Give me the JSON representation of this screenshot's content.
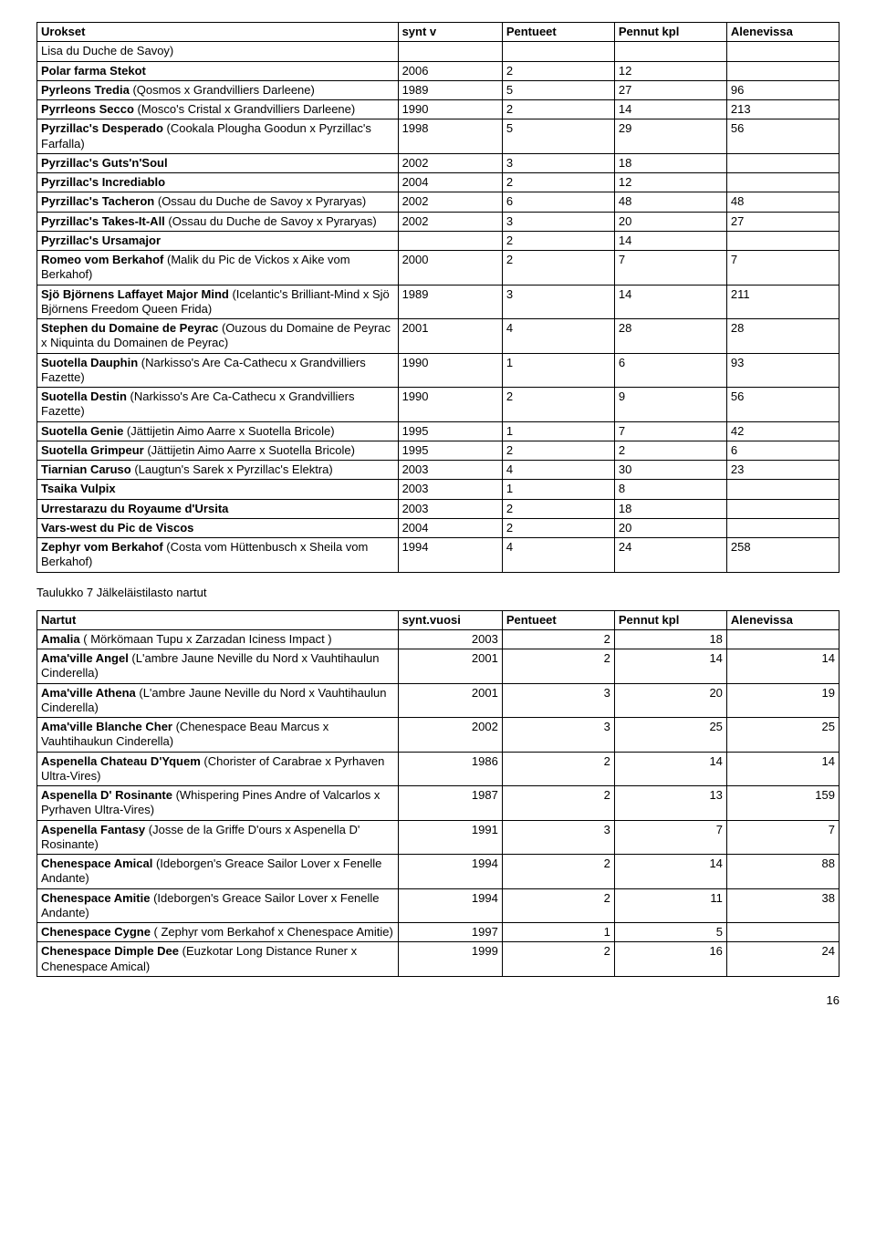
{
  "table1": {
    "headers": [
      "Urokset",
      "synt v",
      "Pentueet",
      "Pennut kpl",
      "Alenevissa"
    ],
    "rows": [
      {
        "name": "Lisa du Duche de Savoy)",
        "bold_prefix": "",
        "c2": "",
        "c3": "",
        "c4": "",
        "c5": ""
      },
      {
        "name": "Polar farma Stekot",
        "bold_full": true,
        "c2": "2006",
        "c3": "2",
        "c4": "12",
        "c5": ""
      },
      {
        "name_bold": "Pyrleons Tredia",
        "name_rest": " (Qosmos x Grandvilliers Darleene)",
        "c2": "1989",
        "c3": "5",
        "c4": "27",
        "c5": "96"
      },
      {
        "name_bold": "Pyrrleons Secco",
        "name_rest": " (Mosco's Cristal x Grandvilliers Darleene)",
        "c2": "1990",
        "c3": "2",
        "c4": "14",
        "c5": "213"
      },
      {
        "name_bold": "Pyrzillac's Desperado",
        "name_rest": " (Cookala Plougha Goodun x Pyrzillac's Farfalla)",
        "c2": "1998",
        "c3": "5",
        "c4": "29",
        "c5": "56"
      },
      {
        "name": "Pyrzillac's Guts'n'Soul",
        "bold_full": true,
        "c2": "2002",
        "c3": "3",
        "c4": "18",
        "c5": ""
      },
      {
        "name": "Pyrzillac's Incrediablo",
        "bold_full": true,
        "c2": "2004",
        "c3": "2",
        "c4": "12",
        "c5": ""
      },
      {
        "name_bold": "Pyrzillac's Tacheron",
        "name_rest": " (Ossau du Duche de Savoy x Pyraryas)",
        "c2": "2002",
        "c3": "6",
        "c4": "48",
        "c5": "48"
      },
      {
        "name_bold": "Pyrzillac's Takes-It-All",
        "name_rest": " (Ossau du Duche de Savoy x Pyraryas)",
        "c2": "2002",
        "c3": "3",
        "c4": "20",
        "c5": "27"
      },
      {
        "name": "Pyrzillac's Ursamajor",
        "bold_full": true,
        "c2": "",
        "c3": "2",
        "c4": "14",
        "c5": ""
      },
      {
        "name_bold": "Romeo vom Berkahof",
        "name_rest": " (Malik du Pic de Vickos x Aike vom Berkahof)",
        "c2": "2000",
        "c3": "2",
        "c4": "7",
        "c5": "7"
      },
      {
        "name_bold": "Sjö Björnens Laffayet Major Mind",
        "name_rest": " (Icelantic's Brilliant-Mind x Sjö Björnens Freedom Queen Frida)",
        "c2": "1989",
        "c3": "3",
        "c4": "14",
        "c5": "211"
      },
      {
        "name_bold": "Stephen du Domaine de Peyrac",
        "name_rest": " (Ouzous du Domaine de Peyrac x Niquinta du Domainen de Peyrac)",
        "c2": "2001",
        "c3": "4",
        "c4": "28",
        "c5": "28"
      },
      {
        "name_bold": "Suotella Dauphin",
        "name_rest": " (Narkisso's Are Ca-Cathecu x Grandvilliers Fazette)",
        "c2": "1990",
        "c3": "1",
        "c4": "6",
        "c5": "93"
      },
      {
        "name_bold": "Suotella Destin",
        "name_rest": " (Narkisso's Are Ca-Cathecu x Grandvilliers Fazette)",
        "c2": "1990",
        "c3": "2",
        "c4": "9",
        "c5": "56"
      },
      {
        "name_bold": "Suotella Genie",
        "name_rest": " (Jättijetin Aimo Aarre x Suotella Bricole)",
        "c2": "1995",
        "c3": "1",
        "c4": "7",
        "c5": "42"
      },
      {
        "name_bold": "Suotella Grimpeur",
        "name_rest": " (Jättijetin Aimo Aarre x Suotella Bricole)",
        "c2": "1995",
        "c3": "2",
        "c4": "2",
        "c5": "6"
      },
      {
        "name_bold": "Tiarnian Caruso",
        "name_rest": " (Laugtun's Sarek x Pyrzillac's Elektra)",
        "c2": "2003",
        "c3": "4",
        "c4": "30",
        "c5": "23"
      },
      {
        "name": "Tsaika Vulpix",
        "bold_full": true,
        "c2": "2003",
        "c3": "1",
        "c4": "8",
        "c5": ""
      },
      {
        "name": "Urrestarazu du Royaume d'Ursita",
        "bold_full": true,
        "c2": "2003",
        "c3": "2",
        "c4": "18",
        "c5": ""
      },
      {
        "name": "Vars-west du Pic de Viscos",
        "bold_full": true,
        "c2": "2004",
        "c3": "2",
        "c4": "20",
        "c5": ""
      },
      {
        "name_bold": "Zephyr vom Berkahof",
        "name_rest": " (Costa vom Hüttenbusch x Sheila vom Berkahof)",
        "c2": "1994",
        "c3": "4",
        "c4": "24",
        "c5": "258"
      }
    ]
  },
  "caption": "Taulukko 7 Jälkeläistilasto nartut",
  "table2": {
    "headers": [
      "Nartut",
      "synt.vuosi",
      "Pentueet",
      "Pennut kpl",
      "Alenevissa"
    ],
    "rows": [
      {
        "name_bold": "Amalia ",
        "name_rest": "( Mörkömaan Tupu x Zarzadan Iciness Impact )",
        "c2": "2003",
        "c3": "2",
        "c4": "18",
        "c5": ""
      },
      {
        "name_bold": "Ama'ville Angel",
        "name_rest": " (L'ambre Jaune Neville du Nord x Vauhtihaulun Cinderella)",
        "c2": "2001",
        "c3": "2",
        "c4": "14",
        "c5": "14"
      },
      {
        "name_bold": "Ama'ville Athena",
        "name_rest": " (L'ambre Jaune Neville du Nord x Vauhtihaulun Cinderella)",
        "c2": "2001",
        "c3": "3",
        "c4": "20",
        "c5": "19"
      },
      {
        "name_bold": "Ama'ville Blanche Cher",
        "name_rest": " (Chenespace Beau Marcus x Vauhtihaukun Cinderella)",
        "c2": "2002",
        "c3": "3",
        "c4": "25",
        "c5": "25"
      },
      {
        "name_bold": "Aspenella Chateau D'Yquem",
        "name_rest": " (Chorister of Carabrae x Pyrhaven Ultra-Vires)",
        "c2": "1986",
        "c3": "2",
        "c4": "14",
        "c5": "14"
      },
      {
        "name_bold": "Aspenella D' Rosinante",
        "name_rest": " (Whispering Pines Andre of Valcarlos x Pyrhaven Ultra-Vires)",
        "c2": "1987",
        "c3": "2",
        "c4": "13",
        "c5": "159"
      },
      {
        "name_bold": "Aspenella Fantasy",
        "name_rest": " (Josse de la Griffe D'ours x Aspenella D' Rosinante)",
        "c2": "1991",
        "c3": "3",
        "c4": "7",
        "c5": "7"
      },
      {
        "name_bold": "Chenespace Amical",
        "name_rest": " (Ideborgen's Greace Sailor Lover x Fenelle Andante)",
        "c2": "1994",
        "c3": "2",
        "c4": "14",
        "c5": "88"
      },
      {
        "name_bold": "Chenespace Amitie",
        "name_rest": " (Ideborgen's Greace Sailor Lover x Fenelle Andante)",
        "c2": "1994",
        "c3": "2",
        "c4": "11",
        "c5": "38"
      },
      {
        "name_bold": "Chenespace Cygne",
        "name_rest": " ( Zephyr vom Berkahof x Chenespace Amitie)",
        "c2": "1997",
        "c3": "1",
        "c4": "5",
        "c5": ""
      },
      {
        "name_bold": "Chenespace Dimple Dee",
        "name_rest": " (Euzkotar Long Distance Runer x Chenespace Amical)",
        "c2": "1999",
        "c3": "2",
        "c4": "16",
        "c5": "24"
      }
    ]
  },
  "page_number": "16"
}
